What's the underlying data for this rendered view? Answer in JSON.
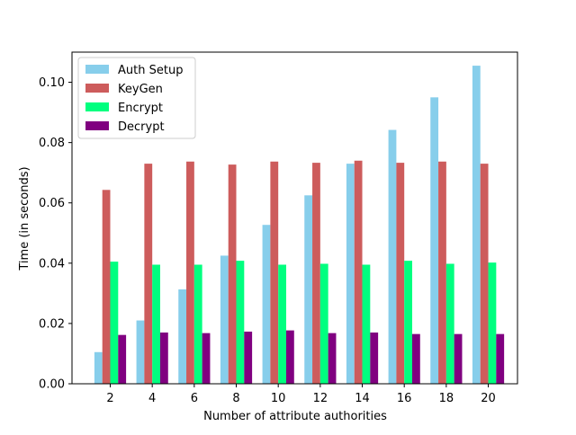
{
  "chart_data": {
    "type": "bar",
    "title": "",
    "xlabel": "Number of attribute authorities",
    "ylabel": "Time (in seconds)",
    "categories": [
      2,
      4,
      6,
      8,
      10,
      12,
      14,
      16,
      18,
      20
    ],
    "ylim": [
      0,
      0.11
    ],
    "yticks": [
      0.0,
      0.02,
      0.04,
      0.06,
      0.08,
      0.1
    ],
    "ytick_labels": [
      "0.00",
      "0.02",
      "0.04",
      "0.06",
      "0.08",
      "0.10"
    ],
    "grid": false,
    "legend_position": "top-left",
    "series": [
      {
        "name": "Auth Setup",
        "color": "#87ceeb",
        "values": [
          0.0105,
          0.021,
          0.0313,
          0.0425,
          0.0527,
          0.0625,
          0.073,
          0.0842,
          0.095,
          0.1055
        ]
      },
      {
        "name": "KeyGen",
        "color": "#cd5c5c",
        "values": [
          0.0643,
          0.073,
          0.0737,
          0.0727,
          0.0737,
          0.0733,
          0.074,
          0.0733,
          0.0737,
          0.073
        ]
      },
      {
        "name": "Encrypt",
        "color": "#00ff7f",
        "values": [
          0.0405,
          0.0395,
          0.0395,
          0.0408,
          0.0395,
          0.0398,
          0.0395,
          0.0408,
          0.0398,
          0.0402
        ]
      },
      {
        "name": "Decrypt",
        "color": "#800080",
        "values": [
          0.0162,
          0.017,
          0.0168,
          0.0173,
          0.0177,
          0.0168,
          0.017,
          0.0165,
          0.0165,
          0.0165
        ]
      }
    ]
  }
}
